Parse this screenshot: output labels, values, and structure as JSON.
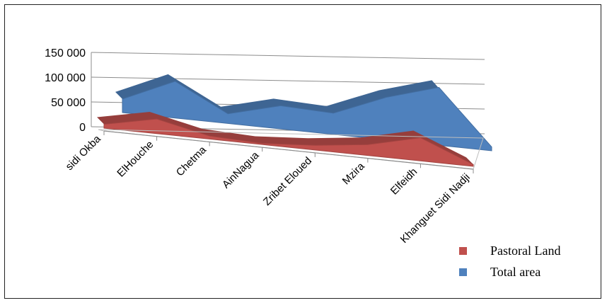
{
  "chart_data": {
    "type": "area",
    "categories": [
      "sidi Okba",
      "ElHouche",
      "Chetma",
      "AinNagua",
      "Zribet  Eloued",
      "Mzira",
      "Elfeidh",
      "Khanguet Sidi Nadji"
    ],
    "series": [
      {
        "name": "Pastoral Land",
        "values": [
          10000,
          38000,
          8000,
          3000,
          12000,
          28000,
          60000,
          5000
        ],
        "color": "#c0504d"
      },
      {
        "name": "Total area",
        "values": [
          35000,
          95000,
          25000,
          60000,
          55000,
          110000,
          150000,
          10000
        ],
        "color": "#4f81bd"
      }
    ],
    "y_ticks": [
      "150 000",
      "100 000",
      "50 000",
      "0"
    ],
    "ylim": [
      0,
      150000
    ],
    "grid": true,
    "legend_position": "bottom-right",
    "projection": "3d-perspective"
  }
}
